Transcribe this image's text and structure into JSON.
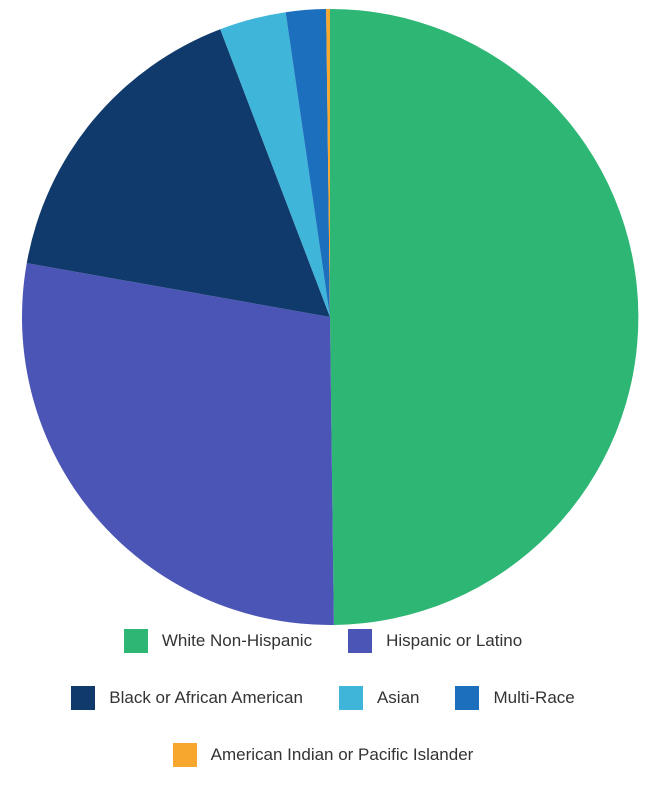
{
  "chart_data": {
    "type": "pie",
    "title": "",
    "start_angle_deg": 0,
    "direction": "clockwise",
    "legend_position": "bottom",
    "slices": [
      {
        "label": "White Non-Hispanic",
        "value": 49.8,
        "color": "#2db674"
      },
      {
        "label": "Hispanic or Latino",
        "value": 28.0,
        "color": "#4b55b5"
      },
      {
        "label": "Black or African American",
        "value": 16.4,
        "color": "#103a6b"
      },
      {
        "label": "Asian",
        "value": 3.5,
        "color": "#3fb5d9"
      },
      {
        "label": "Multi-Race",
        "value": 2.1,
        "color": "#1c6fbd"
      },
      {
        "label": "American Indian or Pacific Islander",
        "value": 0.2,
        "color": "#f7a62e"
      }
    ]
  },
  "legend": {
    "rows": [
      [
        0,
        1
      ],
      [
        2,
        3,
        4
      ],
      [
        5
      ]
    ]
  }
}
